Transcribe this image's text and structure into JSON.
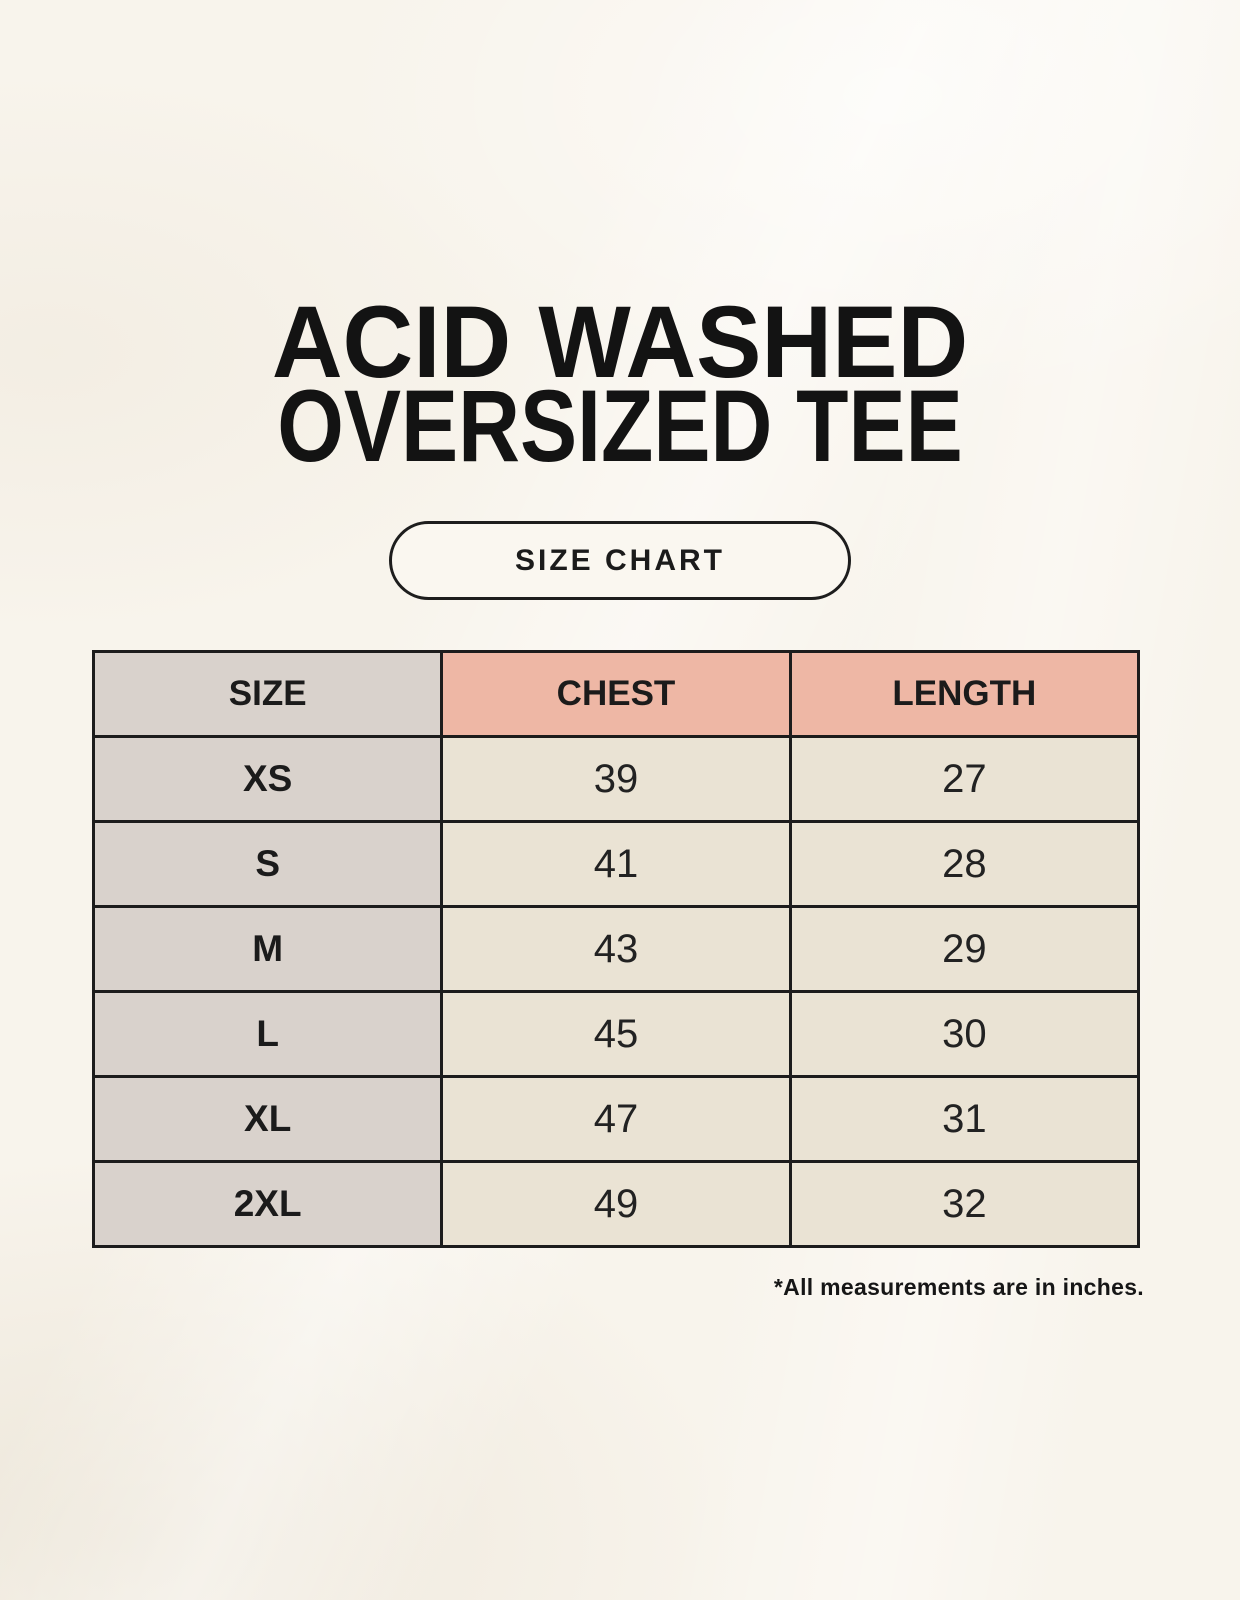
{
  "header": {
    "title_line1": "ACID WASHED",
    "title_line2": "OVERSIZED TEE",
    "button_label": "SIZE CHART"
  },
  "footnote": "*All measurements are in inches.",
  "colors": {
    "page_bg": "#f8f4ec",
    "ink": "#1b1b1b",
    "table_border": "#1c1c1c",
    "size_column_bg": "#d9d2cc",
    "measure_header_bg": "#eeb7a5",
    "value_cell_bg": "#eae3d4",
    "button_bg": "#faf7f0"
  },
  "chart_data": {
    "type": "table",
    "title": "SIZE CHART",
    "units": "inches",
    "columns": [
      "SIZE",
      "CHEST",
      "LENGTH"
    ],
    "rows": [
      {
        "size": "XS",
        "chest": "39",
        "length": "27"
      },
      {
        "size": "S",
        "chest": "41",
        "length": "28"
      },
      {
        "size": "M",
        "chest": "43",
        "length": "29"
      },
      {
        "size": "L",
        "chest": "45",
        "length": "30"
      },
      {
        "size": "XL",
        "chest": "47",
        "length": "31"
      },
      {
        "size": "2XL",
        "chest": "49",
        "length": "32"
      }
    ]
  }
}
